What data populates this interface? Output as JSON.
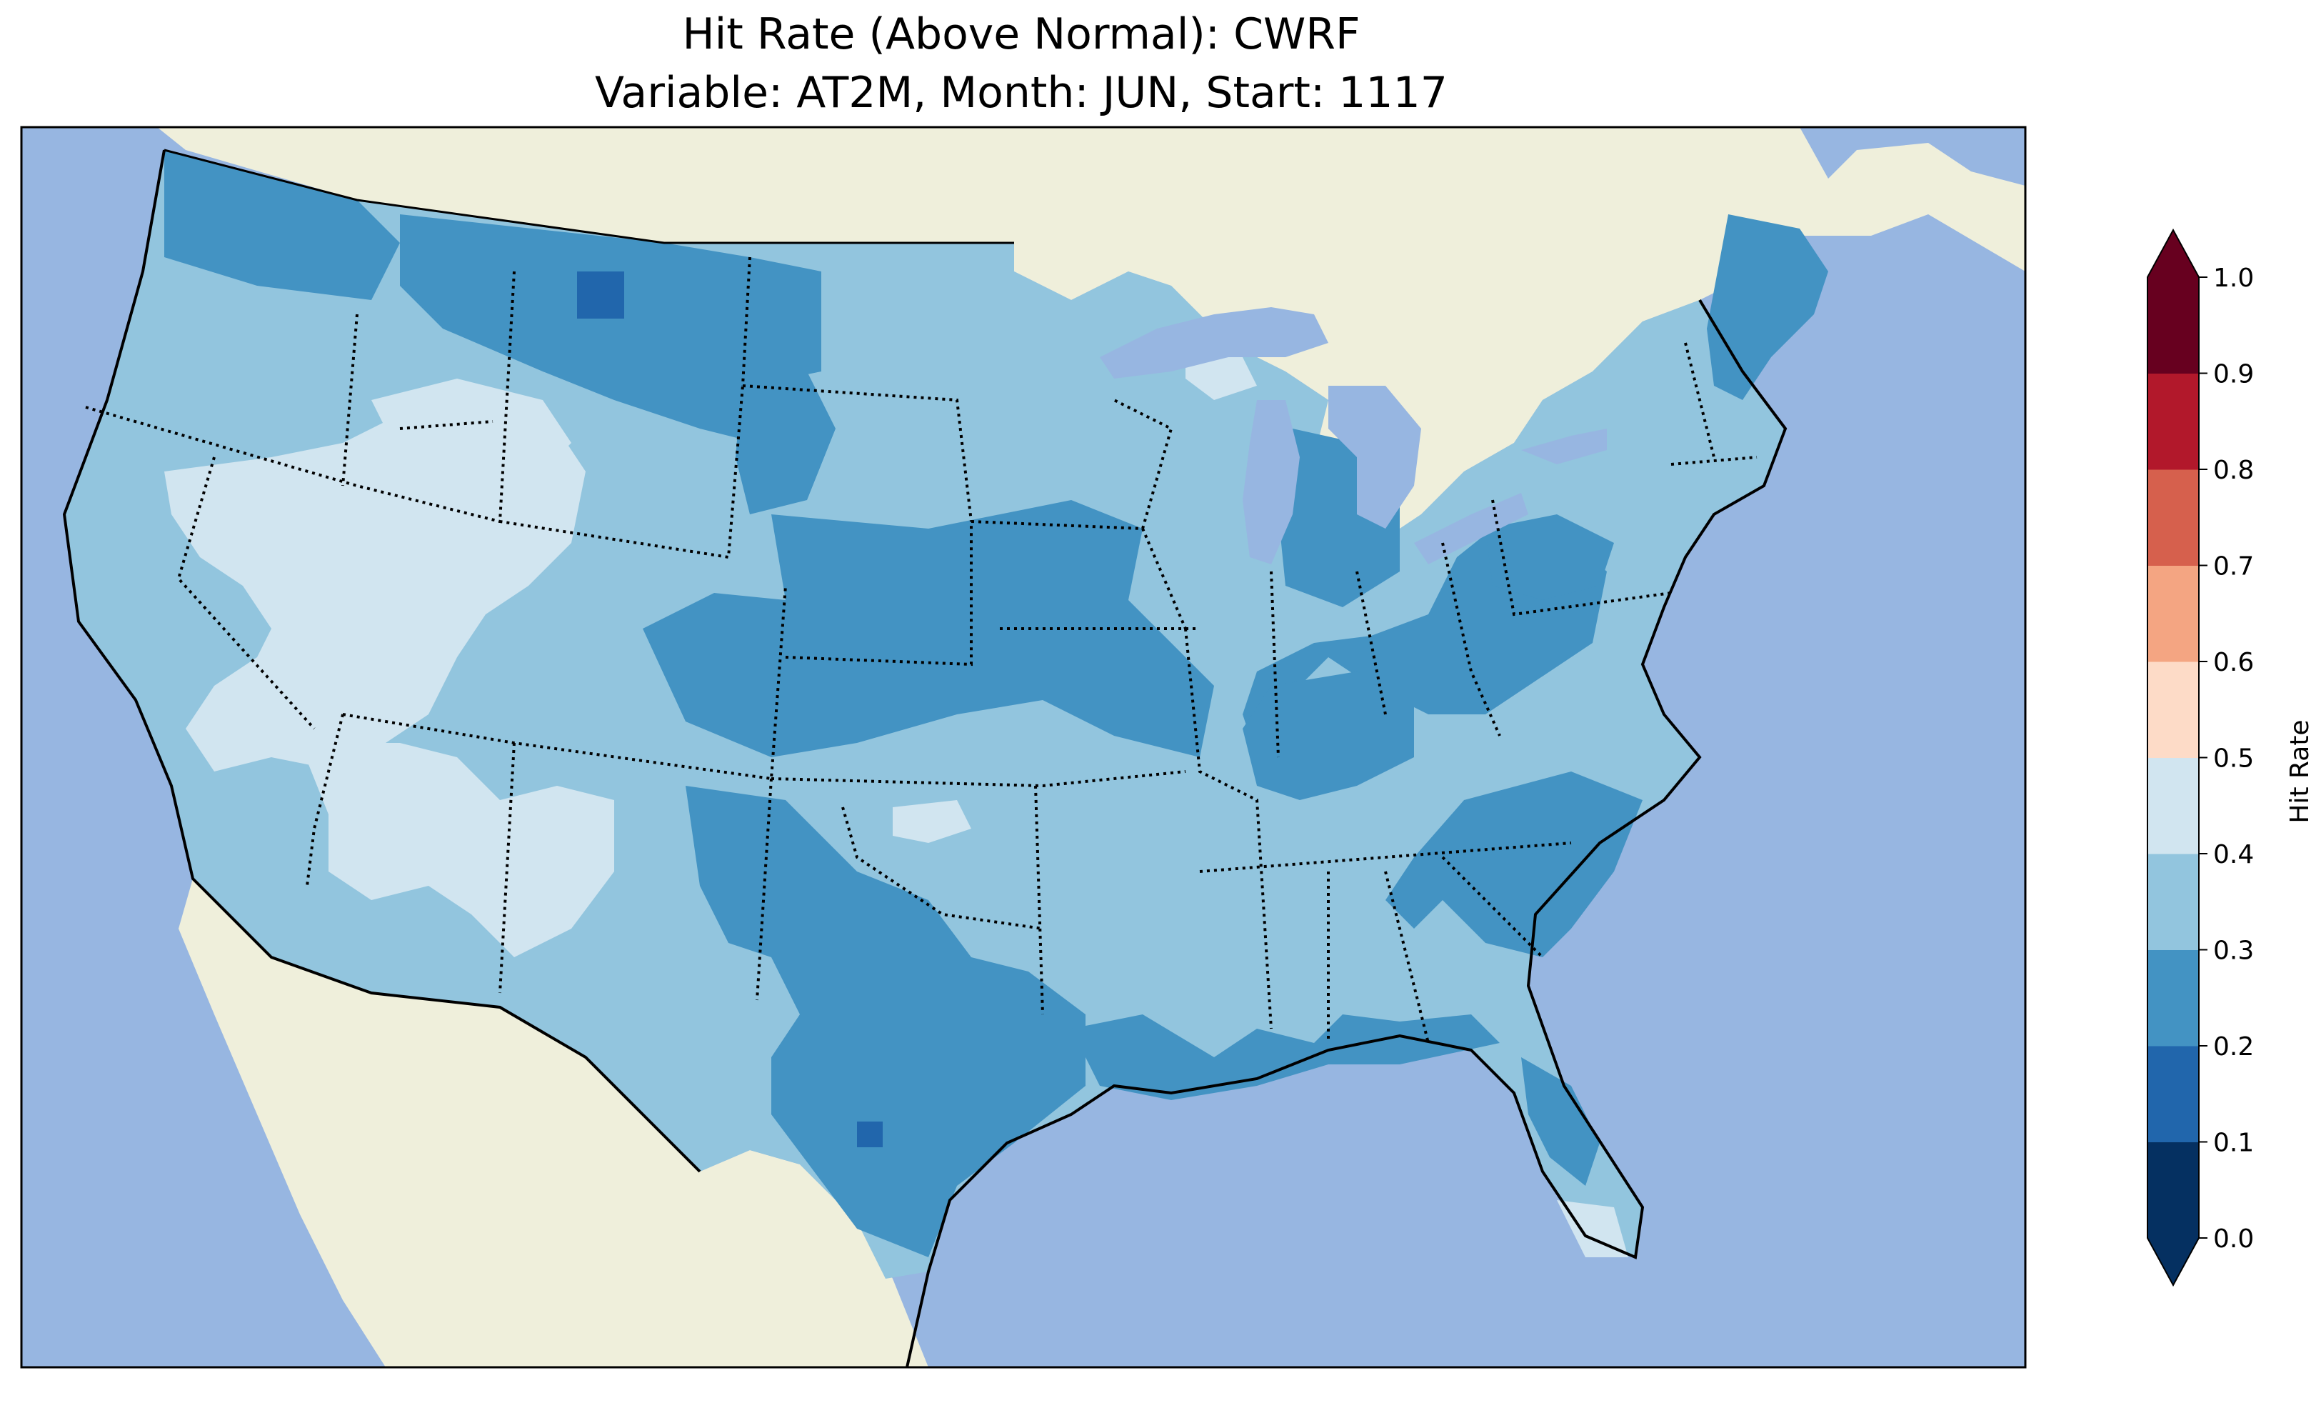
{
  "title": {
    "line1": "Hit Rate (Above Normal): CWRF",
    "line2": "Variable: AT2M, Month: JUN, Start: 1117"
  },
  "map": {
    "region": "Contiguous United States",
    "projection": "Lambert Conformal",
    "ocean_color": "#97b6e1",
    "land_color": "#efefdb",
    "state_borders": "dotted",
    "coastlines": "solid"
  },
  "colorbar": {
    "label": "Hit Rate",
    "ticks": [
      "0.0",
      "0.1",
      "0.2",
      "0.3",
      "0.4",
      "0.5",
      "0.6",
      "0.7",
      "0.8",
      "0.9",
      "1.0"
    ],
    "colors": [
      "#053061",
      "#2166ac",
      "#4393c3",
      "#92c5de",
      "#d1e5f0",
      "#fddbc7",
      "#f4a582",
      "#d6604d",
      "#b2182b",
      "#67001f"
    ],
    "extend": "both",
    "under_color": "#053061",
    "over_color": "#67001f"
  },
  "chart_data": {
    "type": "heatmap",
    "variable": "AT2M",
    "month": "JUN",
    "start": "1117",
    "model": "CWRF",
    "value_range": [
      0.0,
      1.0
    ],
    "dominant_ranges": [
      "0.2-0.3",
      "0.3-0.4",
      "0.4-0.5"
    ]
  }
}
